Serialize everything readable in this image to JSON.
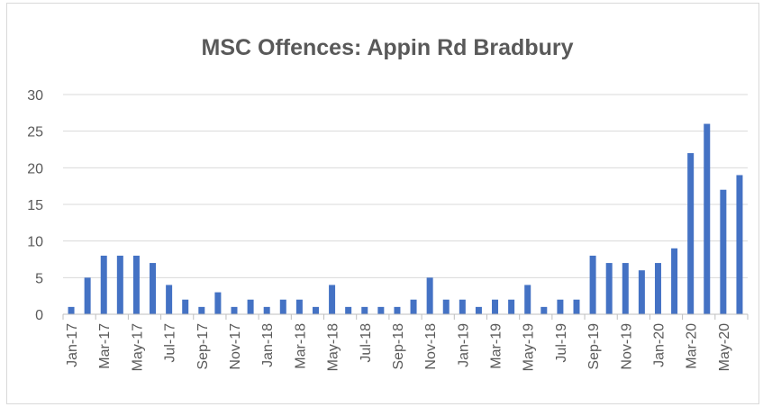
{
  "chart_data": {
    "type": "bar",
    "title": "MSC Offences: Appin Rd Bradbury",
    "xlabel": "",
    "ylabel": "",
    "ylim": [
      0,
      30
    ],
    "yticks": [
      0,
      5,
      10,
      15,
      20,
      25,
      30
    ],
    "grid": true,
    "legend": "none",
    "bar_color": "#4472c4",
    "categories": [
      "Jan-17",
      "Feb-17",
      "Mar-17",
      "Apr-17",
      "May-17",
      "Jun-17",
      "Jul-17",
      "Aug-17",
      "Sep-17",
      "Oct-17",
      "Nov-17",
      "Dec-17",
      "Jan-18",
      "Feb-18",
      "Mar-18",
      "Apr-18",
      "May-18",
      "Jun-18",
      "Jul-18",
      "Aug-18",
      "Sep-18",
      "Oct-18",
      "Nov-18",
      "Dec-18",
      "Jan-19",
      "Feb-19",
      "Mar-19",
      "Apr-19",
      "May-19",
      "Jun-19",
      "Jul-19",
      "Aug-19",
      "Sep-19",
      "Oct-19",
      "Nov-19",
      "Dec-19",
      "Jan-20",
      "Feb-20",
      "Mar-20",
      "Apr-20",
      "May-20",
      "Jun-20"
    ],
    "tick_labels": [
      "Jan-17",
      "Mar-17",
      "May-17",
      "Jul-17",
      "Sep-17",
      "Nov-17",
      "Jan-18",
      "Mar-18",
      "May-18",
      "Jul-18",
      "Sep-18",
      "Nov-18",
      "Jan-19",
      "Mar-19",
      "May-19",
      "Jul-19",
      "Sep-19",
      "Nov-19",
      "Jan-20",
      "Mar-20",
      "May-20"
    ],
    "values": [
      1,
      5,
      8,
      8,
      8,
      7,
      4,
      2,
      1,
      3,
      1,
      2,
      1,
      2,
      2,
      1,
      4,
      1,
      1,
      1,
      1,
      2,
      5,
      2,
      2,
      1,
      2,
      2,
      4,
      1,
      2,
      2,
      8,
      7,
      7,
      6,
      7,
      9,
      22,
      26,
      17,
      19
    ]
  }
}
